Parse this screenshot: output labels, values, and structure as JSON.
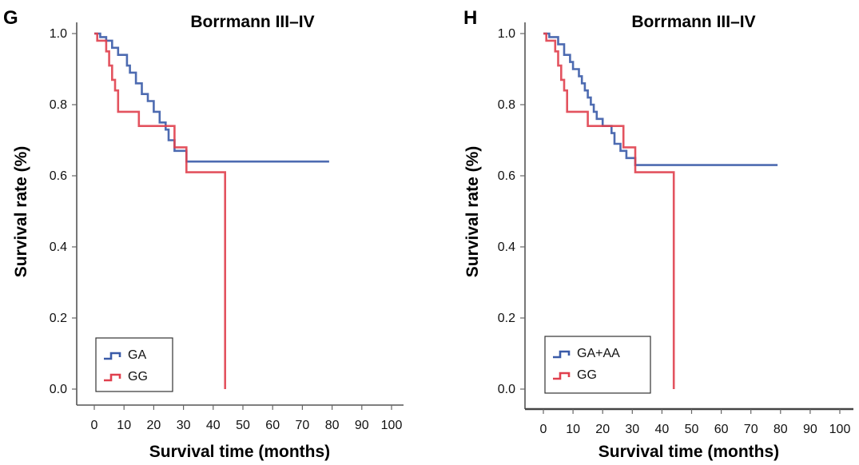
{
  "panels": [
    {
      "letter": "G",
      "legend": [
        {
          "label": "GA",
          "color": "#3a5ba8"
        },
        {
          "label": "GG",
          "color": "#e0404e"
        }
      ]
    },
    {
      "letter": "H",
      "legend": [
        {
          "label": "GA+AA",
          "color": "#3a5ba8"
        },
        {
          "label": "GG",
          "color": "#e0404e"
        }
      ]
    }
  ],
  "chart_data": [
    {
      "type": "line",
      "title": "Borrmann III–IV",
      "xlabel": "Survival time (months)",
      "ylabel": "Survival rate (%)",
      "xlim": [
        0,
        100
      ],
      "ylim": [
        0,
        1.0
      ],
      "x_ticks": [
        "0",
        "10",
        "20",
        "30",
        "40",
        "50",
        "60",
        "70",
        "80",
        "90",
        "100"
      ],
      "y_ticks": [
        "0.0",
        "0.2",
        "0.4",
        "0.6",
        "0.8",
        "1.0"
      ],
      "legend_position": "bottom-left",
      "grid": false,
      "series": [
        {
          "name": "GA",
          "color": "#3a5ba8",
          "step_points": [
            [
              0,
              1.0
            ],
            [
              2,
              1.0
            ],
            [
              2,
              0.99
            ],
            [
              4,
              0.99
            ],
            [
              4,
              0.98
            ],
            [
              6,
              0.98
            ],
            [
              6,
              0.96
            ],
            [
              8,
              0.96
            ],
            [
              8,
              0.94
            ],
            [
              11,
              0.94
            ],
            [
              11,
              0.91
            ],
            [
              12,
              0.91
            ],
            [
              12,
              0.89
            ],
            [
              14,
              0.89
            ],
            [
              14,
              0.86
            ],
            [
              16,
              0.86
            ],
            [
              16,
              0.83
            ],
            [
              18,
              0.83
            ],
            [
              18,
              0.81
            ],
            [
              20,
              0.81
            ],
            [
              20,
              0.78
            ],
            [
              22,
              0.78
            ],
            [
              22,
              0.75
            ],
            [
              24,
              0.75
            ],
            [
              24,
              0.73
            ],
            [
              25,
              0.73
            ],
            [
              25,
              0.7
            ],
            [
              27,
              0.7
            ],
            [
              27,
              0.67
            ],
            [
              31,
              0.67
            ],
            [
              31,
              0.64
            ],
            [
              79,
              0.64
            ]
          ]
        },
        {
          "name": "GG",
          "color": "#e0404e",
          "step_points": [
            [
              0,
              1.0
            ],
            [
              1,
              1.0
            ],
            [
              1,
              0.98
            ],
            [
              4,
              0.98
            ],
            [
              4,
              0.95
            ],
            [
              5,
              0.95
            ],
            [
              5,
              0.91
            ],
            [
              6,
              0.91
            ],
            [
              6,
              0.87
            ],
            [
              7,
              0.87
            ],
            [
              7,
              0.84
            ],
            [
              8,
              0.84
            ],
            [
              8,
              0.78
            ],
            [
              15,
              0.78
            ],
            [
              15,
              0.74
            ],
            [
              27,
              0.74
            ],
            [
              27,
              0.68
            ],
            [
              31,
              0.68
            ],
            [
              31,
              0.61
            ],
            [
              44,
              0.61
            ],
            [
              44,
              0.0
            ]
          ]
        }
      ]
    },
    {
      "type": "line",
      "title": "Borrmann III–IV",
      "xlabel": "Survival time (months)",
      "ylabel": "Survival rate (%)",
      "xlim": [
        0,
        100
      ],
      "ylim": [
        0,
        1.0
      ],
      "x_ticks": [
        "0",
        "10",
        "20",
        "30",
        "40",
        "50",
        "60",
        "70",
        "80",
        "90",
        "100"
      ],
      "y_ticks": [
        "0.0",
        "0.2",
        "0.4",
        "0.6",
        "0.8",
        "1.0"
      ],
      "legend_position": "bottom-left",
      "grid": false,
      "series": [
        {
          "name": "GA+AA",
          "color": "#3a5ba8",
          "step_points": [
            [
              0,
              1.0
            ],
            [
              2,
              1.0
            ],
            [
              2,
              0.99
            ],
            [
              5,
              0.99
            ],
            [
              5,
              0.97
            ],
            [
              7,
              0.97
            ],
            [
              7,
              0.94
            ],
            [
              9,
              0.94
            ],
            [
              9,
              0.92
            ],
            [
              10,
              0.92
            ],
            [
              10,
              0.9
            ],
            [
              12,
              0.9
            ],
            [
              12,
              0.88
            ],
            [
              13,
              0.88
            ],
            [
              13,
              0.86
            ],
            [
              14,
              0.86
            ],
            [
              14,
              0.84
            ],
            [
              15,
              0.84
            ],
            [
              15,
              0.82
            ],
            [
              16,
              0.82
            ],
            [
              16,
              0.8
            ],
            [
              17,
              0.8
            ],
            [
              17,
              0.78
            ],
            [
              18,
              0.78
            ],
            [
              18,
              0.76
            ],
            [
              20,
              0.76
            ],
            [
              20,
              0.74
            ],
            [
              23,
              0.74
            ],
            [
              23,
              0.72
            ],
            [
              24,
              0.72
            ],
            [
              24,
              0.69
            ],
            [
              26,
              0.69
            ],
            [
              26,
              0.67
            ],
            [
              28,
              0.67
            ],
            [
              28,
              0.65
            ],
            [
              31,
              0.65
            ],
            [
              31,
              0.63
            ],
            [
              79,
              0.63
            ]
          ]
        },
        {
          "name": "GG",
          "color": "#e0404e",
          "step_points": [
            [
              0,
              1.0
            ],
            [
              1,
              1.0
            ],
            [
              1,
              0.98
            ],
            [
              4,
              0.98
            ],
            [
              4,
              0.95
            ],
            [
              5,
              0.95
            ],
            [
              5,
              0.91
            ],
            [
              6,
              0.91
            ],
            [
              6,
              0.87
            ],
            [
              7,
              0.87
            ],
            [
              7,
              0.84
            ],
            [
              8,
              0.84
            ],
            [
              8,
              0.78
            ],
            [
              15,
              0.78
            ],
            [
              15,
              0.74
            ],
            [
              27,
              0.74
            ],
            [
              27,
              0.68
            ],
            [
              31,
              0.68
            ],
            [
              31,
              0.61
            ],
            [
              44,
              0.61
            ],
            [
              44,
              0.0
            ]
          ]
        }
      ]
    }
  ]
}
